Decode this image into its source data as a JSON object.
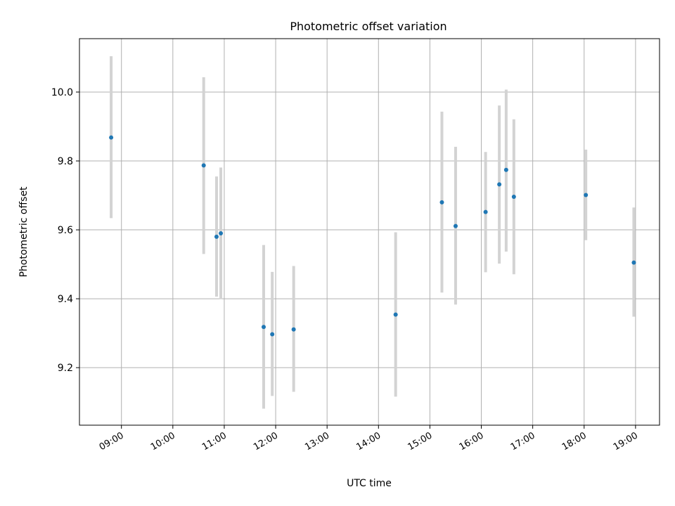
{
  "chart_data": {
    "type": "scatter",
    "title": "Photometric offset variation",
    "xlabel": "UTC time",
    "ylabel": "Photometric offset",
    "grid": true,
    "legend": "none",
    "xlim": [
      "08:11",
      "19:28"
    ],
    "ylim": [
      9.033,
      10.155
    ],
    "x_ticks": [
      "09:00",
      "10:00",
      "11:00",
      "12:00",
      "13:00",
      "14:00",
      "15:00",
      "16:00",
      "17:00",
      "18:00",
      "19:00"
    ],
    "y_ticks": [
      9.2,
      9.4,
      9.6,
      9.8,
      10.0
    ],
    "y_tick_labels": [
      "9.2",
      "9.4",
      "9.6",
      "9.8",
      "10.0"
    ],
    "series": [
      {
        "points": [
          {
            "x": "08:48",
            "y": 9.868,
            "low": 9.634,
            "high": 10.104
          },
          {
            "x": "10:36",
            "y": 9.787,
            "low": 9.53,
            "high": 10.043
          },
          {
            "x": "10:51",
            "y": 9.58,
            "low": 9.406,
            "high": 9.755
          },
          {
            "x": "10:56",
            "y": 9.59,
            "low": 9.399,
            "high": 9.781
          },
          {
            "x": "11:46",
            "y": 9.318,
            "low": 9.081,
            "high": 9.556
          },
          {
            "x": "11:56",
            "y": 9.297,
            "low": 9.118,
            "high": 9.478
          },
          {
            "x": "12:21",
            "y": 9.311,
            "low": 9.13,
            "high": 9.495
          },
          {
            "x": "14:20",
            "y": 9.354,
            "low": 9.116,
            "high": 9.593
          },
          {
            "x": "15:14",
            "y": 9.68,
            "low": 9.418,
            "high": 9.943
          },
          {
            "x": "15:30",
            "y": 9.611,
            "low": 9.383,
            "high": 9.841
          },
          {
            "x": "16:05",
            "y": 9.652,
            "low": 9.477,
            "high": 9.826
          },
          {
            "x": "16:21",
            "y": 9.732,
            "low": 9.502,
            "high": 9.961
          },
          {
            "x": "16:29",
            "y": 9.774,
            "low": 9.537,
            "high": 10.007
          },
          {
            "x": "16:38",
            "y": 9.696,
            "low": 9.471,
            "high": 9.921
          },
          {
            "x": "18:02",
            "y": 9.701,
            "low": 9.57,
            "high": 9.833
          },
          {
            "x": "18:58",
            "y": 9.505,
            "low": 9.348,
            "high": 9.665
          }
        ]
      }
    ]
  },
  "colors": {
    "marker": "#1f77b4",
    "errorbar": "#d3d3d3",
    "grid": "#b0b0b0",
    "axes": "#000000"
  }
}
